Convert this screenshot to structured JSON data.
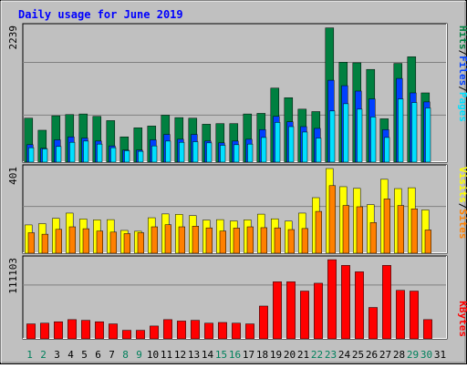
{
  "chart_data": [
    {
      "type": "bar",
      "title": "Daily usage for June 2019",
      "categories": [
        "1",
        "2",
        "3",
        "4",
        "5",
        "6",
        "7",
        "8",
        "9",
        "10",
        "11",
        "12",
        "13",
        "14",
        "15",
        "16",
        "17",
        "18",
        "19",
        "20",
        "21",
        "22",
        "23",
        "24",
        "25",
        "26",
        "27",
        "28",
        "29",
        "30",
        "31"
      ],
      "weekend_days": [
        "1",
        "2",
        "8",
        "9",
        "15",
        "16",
        "22",
        "23",
        "29",
        "30"
      ],
      "y_tick_label": "2239",
      "ylim": [
        0,
        2239
      ],
      "legend": [
        "Pages",
        "Files",
        "Hits"
      ],
      "series": [
        {
          "name": "Hits",
          "values": [
            730,
            530,
            770,
            790,
            800,
            760,
            690,
            420,
            570,
            600,
            780,
            740,
            730,
            630,
            640,
            640,
            800,
            810,
            1230,
            1070,
            880,
            840,
            2230,
            1660,
            1650,
            1540,
            720,
            1640,
            1750,
            1150,
            null
          ]
        },
        {
          "name": "Files",
          "values": [
            290,
            230,
            370,
            420,
            400,
            350,
            270,
            200,
            200,
            370,
            460,
            380,
            460,
            350,
            320,
            350,
            380,
            540,
            760,
            670,
            590,
            560,
            1360,
            1270,
            1180,
            1050,
            540,
            1390,
            1150,
            1000,
            null
          ]
        },
        {
          "name": "Pages",
          "values": [
            240,
            220,
            260,
            330,
            350,
            300,
            240,
            190,
            180,
            270,
            350,
            330,
            340,
            320,
            280,
            290,
            300,
            410,
            660,
            590,
            500,
            400,
            850,
            970,
            880,
            750,
            410,
            1050,
            990,
            900,
            null
          ]
        }
      ]
    },
    {
      "type": "bar",
      "y_tick_label": "401",
      "ylim": [
        0,
        401
      ],
      "legend": [
        "Sites",
        "Visits"
      ],
      "series": [
        {
          "name": "Visits",
          "values": [
            134,
            140,
            165,
            190,
            162,
            158,
            159,
            108,
            104,
            168,
            186,
            184,
            178,
            157,
            159,
            153,
            158,
            185,
            163,
            152,
            190,
            263,
            401,
            315,
            307,
            230,
            350,
            306,
            310,
            205,
            null
          ]
        },
        {
          "name": "Sites",
          "values": [
            97,
            90,
            113,
            125,
            116,
            105,
            100,
            93,
            97,
            125,
            135,
            125,
            128,
            120,
            105,
            119,
            125,
            121,
            120,
            112,
            117,
            198,
            320,
            226,
            220,
            145,
            257,
            226,
            210,
            110,
            null
          ]
        }
      ]
    },
    {
      "type": "bar",
      "y_tick_label": "111103",
      "ylim": [
        0,
        111103
      ],
      "legend": [
        "KBytes"
      ],
      "series": [
        {
          "name": "KBytes",
          "values": [
            21000,
            22000,
            24000,
            27000,
            26000,
            24000,
            21000,
            12000,
            12000,
            18000,
            27000,
            25000,
            26000,
            22000,
            23000,
            22000,
            21000,
            46000,
            80000,
            80000,
            67000,
            78000,
            111000,
            103000,
            94000,
            44000,
            103000,
            68000,
            67000,
            27000,
            null
          ]
        }
      ]
    }
  ],
  "x_axis_labels": [
    "1",
    "2",
    "3",
    "4",
    "5",
    "6",
    "7",
    "8",
    "9",
    "10",
    "11",
    "12",
    "13",
    "14",
    "15",
    "16",
    "17",
    "18",
    "19",
    "20",
    "21",
    "22",
    "23",
    "24",
    "25",
    "26",
    "27",
    "28",
    "29",
    "30",
    "31"
  ],
  "colors": {
    "background": "#c0c0c0",
    "plot_bg": "#c0c0c0",
    "title": "#0000ff",
    "hits": "#008040",
    "files": "#0040ff",
    "pages": "#00e0ff",
    "visits": "#ffff00",
    "sites": "#ff8000",
    "kbytes": "#ff0000",
    "weekday_label": "#000000",
    "weekend_label": "#00805c"
  },
  "ui": {
    "legend_separator": "/"
  }
}
